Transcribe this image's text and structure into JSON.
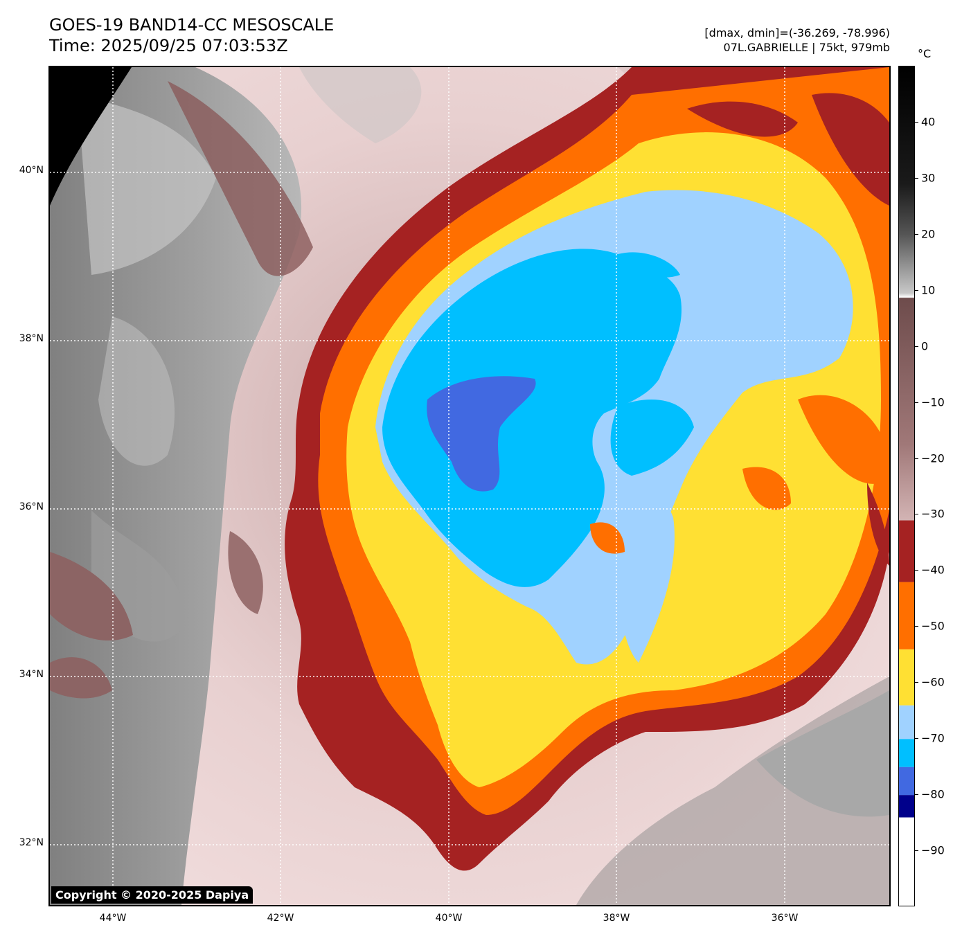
{
  "header": {
    "title_line1": "GOES-19 BAND14-CC MESOSCALE",
    "title_line2": "Time: 2025/09/25 07:03:53Z",
    "info_line1": "[dmax, dmin]=(-36.269, -78.996)",
    "info_line2": "07L.GABRIELLE | 75kt, 979mb"
  },
  "map": {
    "lat_labels": [
      {
        "value": 40,
        "text": "40°N"
      },
      {
        "value": 38,
        "text": "38°N"
      },
      {
        "value": 36,
        "text": "36°N"
      },
      {
        "value": 34,
        "text": "34°N"
      },
      {
        "value": 32,
        "text": "32°N"
      }
    ],
    "lon_labels": [
      {
        "value": -44,
        "text": "44°W"
      },
      {
        "value": -42,
        "text": "42°W"
      },
      {
        "value": -40,
        "text": "40°W"
      },
      {
        "value": -38,
        "text": "38°W"
      },
      {
        "value": -36,
        "text": "36°W"
      }
    ],
    "lon_range": [
      -44.75,
      -34.75
    ],
    "lat_range": [
      31.25,
      41.25
    ],
    "copyright": "Copyright © 2020-2025 Dapiya"
  },
  "colorbar": {
    "unit": "°C",
    "range": [
      -100,
      50
    ],
    "ticks": [
      {
        "value": 40,
        "text": "40"
      },
      {
        "value": 30,
        "text": "30"
      },
      {
        "value": 20,
        "text": "20"
      },
      {
        "value": 10,
        "text": "10"
      },
      {
        "value": 0,
        "text": "0"
      },
      {
        "value": -10,
        "text": "−10"
      },
      {
        "value": -20,
        "text": "−20"
      },
      {
        "value": -30,
        "text": "−30"
      },
      {
        "value": -40,
        "text": "−40"
      },
      {
        "value": -50,
        "text": "−50"
      },
      {
        "value": -60,
        "text": "−60"
      },
      {
        "value": -70,
        "text": "−70"
      },
      {
        "value": -80,
        "text": "−80"
      },
      {
        "value": -90,
        "text": "−90"
      }
    ],
    "bands": [
      {
        "from": -100,
        "to": -84,
        "color": "#ffffff"
      },
      {
        "from": -84,
        "to": -80,
        "color": "#00008b"
      },
      {
        "from": -80,
        "to": -75,
        "color": "#4169e1"
      },
      {
        "from": -75,
        "to": -70,
        "color": "#00bfff"
      },
      {
        "from": -70,
        "to": -64,
        "color": "#a0d2ff"
      },
      {
        "from": -64,
        "to": -54,
        "color": "#ffe033"
      },
      {
        "from": -54,
        "to": -42,
        "color": "#ff6f00"
      },
      {
        "from": -42,
        "to": -31,
        "color": "#a52222"
      }
    ]
  }
}
